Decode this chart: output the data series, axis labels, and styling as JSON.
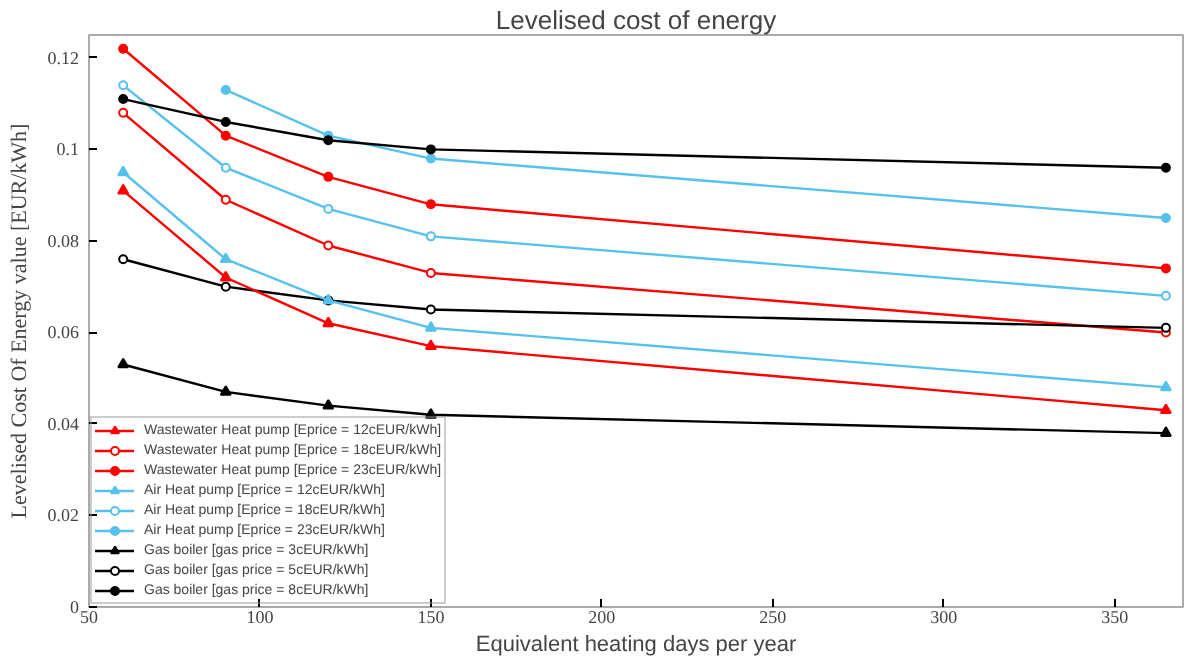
{
  "chart_data": {
    "type": "line",
    "title": "Levelised cost of energy",
    "xlabel": "Equivalent heating days per year",
    "ylabel": "Levelised Cost Of Energy value [EUR/kWh]",
    "x": [
      60,
      90,
      120,
      150,
      365
    ],
    "xlim": [
      50,
      370
    ],
    "xticks": [
      50,
      100,
      150,
      200,
      250,
      300,
      350
    ],
    "ylim": [
      0,
      0.125
    ],
    "yticks": [
      0,
      0.02,
      0.04,
      0.06,
      0.08,
      {
        "value": 0.1,
        "label": "0.1"
      },
      0.12
    ],
    "grid": false,
    "legend": "bottom left",
    "line_style": "solid",
    "series": [
      {
        "name": "Wastewater Heat pump [Eprice = 12cEUR/kWh]",
        "color": "#ff0000",
        "marker": "triangle",
        "values": [
          0.091,
          0.072,
          0.062,
          0.057,
          0.043
        ]
      },
      {
        "name": "Wastewater Heat pump [Eprice = 18cEUR/kWh]",
        "color": "#ff0000",
        "marker": "circle",
        "values": [
          0.108,
          0.089,
          0.079,
          0.073,
          0.06
        ]
      },
      {
        "name": "Wastewater Heat pump [Eprice = 23cEUR/kWh]",
        "color": "#ff0000",
        "marker": "dot",
        "values": [
          0.122,
          0.103,
          0.094,
          0.088,
          0.074
        ]
      },
      {
        "name": "Air Heat pump [Eprice = 12cEUR/kWh]",
        "color": "#55c1ec",
        "marker": "triangle",
        "values": [
          0.095,
          0.076,
          0.067,
          0.061,
          0.048
        ]
      },
      {
        "name": "Air Heat pump [Eprice = 18cEUR/kWh]",
        "color": "#55c1ec",
        "marker": "circle",
        "values": [
          0.114,
          0.096,
          0.087,
          0.081,
          0.068
        ]
      },
      {
        "name": "Air Heat pump [Eprice = 23cEUR/kWh]",
        "color": "#55c1ec",
        "marker": "dot",
        "values": [
          null,
          0.113,
          0.103,
          0.098,
          0.085
        ]
      },
      {
        "name": "Gas boiler [gas price = 3cEUR/kWh]",
        "color": "#000000",
        "marker": "triangle",
        "values": [
          0.053,
          0.047,
          0.044,
          0.042,
          0.038
        ]
      },
      {
        "name": "Gas boiler [gas price = 5cEUR/kWh]",
        "color": "#000000",
        "marker": "circle",
        "values": [
          0.076,
          0.07,
          0.067,
          0.065,
          0.061
        ]
      },
      {
        "name": "Gas boiler [gas price = 8cEUR/kWh]",
        "color": "#000000",
        "marker": "dot",
        "values": [
          0.111,
          0.106,
          0.102,
          0.1,
          0.096
        ]
      }
    ]
  }
}
